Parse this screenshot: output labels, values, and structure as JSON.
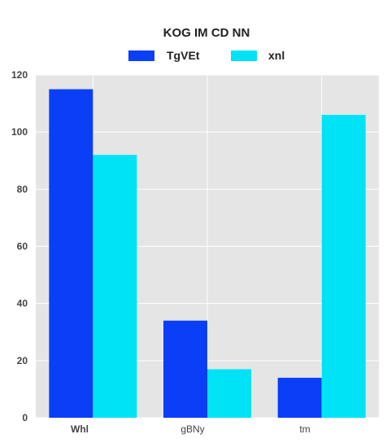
{
  "chart_data": {
    "type": "bar",
    "title": "KOG IM CD NN",
    "categories": [
      "Whl",
      "gBNy",
      "tm"
    ],
    "series": [
      {
        "name": "TgVEt",
        "color": "#0a3ef7",
        "values": [
          115,
          34,
          14
        ]
      },
      {
        "name": "xnl",
        "color": "#00e3f7",
        "values": [
          92,
          17,
          106
        ]
      }
    ],
    "ylim": [
      0,
      120
    ],
    "yticks": [
      0,
      20,
      40,
      60,
      80,
      100,
      120
    ],
    "xlabel": "",
    "ylabel": "",
    "grid": true,
    "legend_position": "top",
    "background": "#e5e5e5"
  }
}
